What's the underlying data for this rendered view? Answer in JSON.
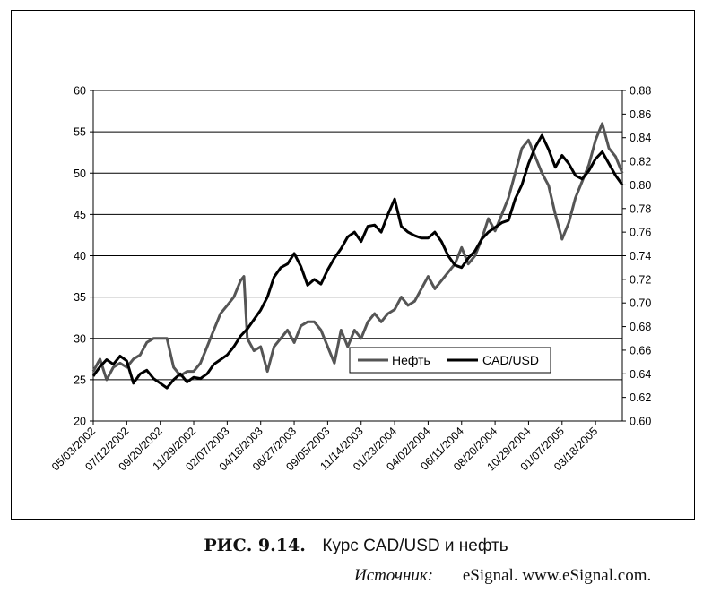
{
  "figure": {
    "label": "РИС. 9.14.",
    "title": "Курс CAD/USD и нефть",
    "source_label": "Источник:",
    "source_text": "eSignal. www.eSignal.com."
  },
  "chart_data": {
    "type": "line",
    "x_tick_labels": [
      "05/03/2002",
      "07/12/2002",
      "09/20/2002",
      "11/29/2002",
      "02/07/2003",
      "04/18/2003",
      "06/27/2003",
      "09/05/2003",
      "11/14/2003",
      "01/23/2004",
      "04/02/2004",
      "06/11/2004",
      "08/20/2004",
      "10/29/2004",
      "01/07/2005",
      "03/18/2005"
    ],
    "x_range": [
      "05/03/2002",
      "05/13/2005"
    ],
    "y_left": {
      "range": [
        20,
        60
      ],
      "ticks": [
        20,
        25,
        30,
        35,
        40,
        45,
        50,
        55,
        60
      ]
    },
    "y_right": {
      "range": [
        0.6,
        0.88
      ],
      "ticks": [
        "0.60",
        "0.62",
        "0.64",
        "0.66",
        "0.68",
        "0.70",
        "0.72",
        "0.74",
        "0.76",
        "0.78",
        "0.80",
        "0.82",
        "0.84",
        "0.86",
        "0.88"
      ]
    },
    "grid": {
      "horizontal": true,
      "vertical": false
    },
    "legend": {
      "placement": "center-right"
    },
    "series": [
      {
        "name": "Нефть",
        "axis": "left",
        "color": "#555555",
        "x": [
          "05/03/2002",
          "05/17/2002",
          "05/31/2002",
          "06/14/2002",
          "06/28/2002",
          "07/12/2002",
          "07/26/2002",
          "08/09/2002",
          "08/23/2002",
          "09/06/2002",
          "09/20/2002",
          "10/04/2002",
          "10/18/2002",
          "11/01/2002",
          "11/15/2002",
          "11/29/2002",
          "12/13/2002",
          "12/27/2002",
          "01/10/2003",
          "01/24/2003",
          "02/07/2003",
          "02/21/2003",
          "03/07/2003",
          "03/14/2003",
          "03/21/2003",
          "04/04/2003",
          "04/18/2003",
          "05/02/2003",
          "05/16/2003",
          "05/30/2003",
          "06/13/2003",
          "06/27/2003",
          "07/11/2003",
          "07/25/2003",
          "08/08/2003",
          "08/22/2003",
          "09/05/2003",
          "09/19/2003",
          "10/03/2003",
          "10/17/2003",
          "10/31/2003",
          "11/14/2003",
          "11/28/2003",
          "12/12/2003",
          "12/26/2003",
          "01/09/2004",
          "01/23/2004",
          "02/06/2004",
          "02/20/2004",
          "03/05/2004",
          "03/19/2004",
          "04/02/2004",
          "04/16/2004",
          "04/30/2004",
          "05/14/2004",
          "05/28/2004",
          "06/11/2004",
          "06/25/2004",
          "07/09/2004",
          "07/23/2004",
          "08/06/2004",
          "08/20/2004",
          "09/03/2004",
          "09/17/2004",
          "10/01/2004",
          "10/15/2004",
          "10/29/2004",
          "11/12/2004",
          "11/26/2004",
          "12/10/2004",
          "12/24/2004",
          "01/07/2005",
          "01/21/2005",
          "02/04/2005",
          "02/18/2005",
          "03/04/2005",
          "03/18/2005",
          "04/01/2005",
          "04/15/2005",
          "04/29/2005",
          "05/13/2005"
        ],
        "values": [
          26,
          27.5,
          25,
          26.5,
          27,
          26.5,
          27.5,
          28,
          29.5,
          30,
          30,
          30,
          26.5,
          25.5,
          26,
          26,
          27,
          29,
          31,
          33,
          34,
          35,
          37,
          37.5,
          30,
          28.5,
          29,
          26,
          29,
          30,
          31,
          29.5,
          31.5,
          32,
          32,
          31,
          29,
          27,
          31,
          29,
          31,
          30,
          32,
          33,
          32,
          33,
          33.5,
          35,
          34,
          34.5,
          36,
          37.5,
          36,
          37,
          38,
          39,
          41,
          39,
          40,
          42,
          44.5,
          43,
          45,
          47,
          50,
          53,
          54,
          52,
          50,
          48.5,
          45,
          42,
          44,
          47,
          49,
          51,
          54,
          56,
          53,
          52,
          50
        ]
      },
      {
        "name": "CAD/USD",
        "axis": "right",
        "color": "#000000",
        "x": [
          "05/03/2002",
          "05/17/2002",
          "05/31/2002",
          "06/14/2002",
          "06/28/2002",
          "07/12/2002",
          "07/26/2002",
          "08/09/2002",
          "08/23/2002",
          "09/06/2002",
          "09/20/2002",
          "10/04/2002",
          "10/18/2002",
          "11/01/2002",
          "11/15/2002",
          "11/29/2002",
          "12/13/2002",
          "12/27/2002",
          "01/10/2003",
          "01/24/2003",
          "02/07/2003",
          "02/21/2003",
          "03/07/2003",
          "03/21/2003",
          "04/04/2003",
          "04/18/2003",
          "05/02/2003",
          "05/16/2003",
          "05/30/2003",
          "06/13/2003",
          "06/27/2003",
          "07/11/2003",
          "07/25/2003",
          "08/08/2003",
          "08/22/2003",
          "09/05/2003",
          "09/19/2003",
          "10/03/2003",
          "10/17/2003",
          "10/31/2003",
          "11/14/2003",
          "11/28/2003",
          "12/12/2003",
          "12/26/2003",
          "01/09/2004",
          "01/23/2004",
          "02/06/2004",
          "02/20/2004",
          "03/05/2004",
          "03/19/2004",
          "04/02/2004",
          "04/16/2004",
          "04/30/2004",
          "05/14/2004",
          "05/28/2004",
          "06/11/2004",
          "06/25/2004",
          "07/09/2004",
          "07/23/2004",
          "08/06/2004",
          "08/20/2004",
          "09/03/2004",
          "09/17/2004",
          "10/01/2004",
          "10/15/2004",
          "10/29/2004",
          "11/12/2004",
          "11/26/2004",
          "12/10/2004",
          "12/24/2004",
          "01/07/2005",
          "01/21/2005",
          "02/04/2005",
          "02/18/2005",
          "03/04/2005",
          "03/18/2005",
          "04/01/2005",
          "04/15/2005",
          "04/29/2005",
          "05/13/2005"
        ],
        "values": [
          0.638,
          0.646,
          0.652,
          0.648,
          0.655,
          0.651,
          0.632,
          0.64,
          0.643,
          0.636,
          0.632,
          0.628,
          0.635,
          0.64,
          0.633,
          0.637,
          0.636,
          0.64,
          0.648,
          0.652,
          0.656,
          0.663,
          0.672,
          0.678,
          0.686,
          0.694,
          0.705,
          0.722,
          0.73,
          0.733,
          0.742,
          0.731,
          0.715,
          0.72,
          0.716,
          0.728,
          0.738,
          0.746,
          0.756,
          0.76,
          0.752,
          0.765,
          0.766,
          0.76,
          0.775,
          0.788,
          0.765,
          0.76,
          0.757,
          0.755,
          0.755,
          0.76,
          0.752,
          0.74,
          0.732,
          0.73,
          0.738,
          0.744,
          0.754,
          0.76,
          0.764,
          0.768,
          0.77,
          0.788,
          0.8,
          0.818,
          0.832,
          0.842,
          0.83,
          0.815,
          0.825,
          0.818,
          0.808,
          0.805,
          0.812,
          0.822,
          0.828,
          0.818,
          0.808,
          0.8
        ]
      }
    ]
  }
}
